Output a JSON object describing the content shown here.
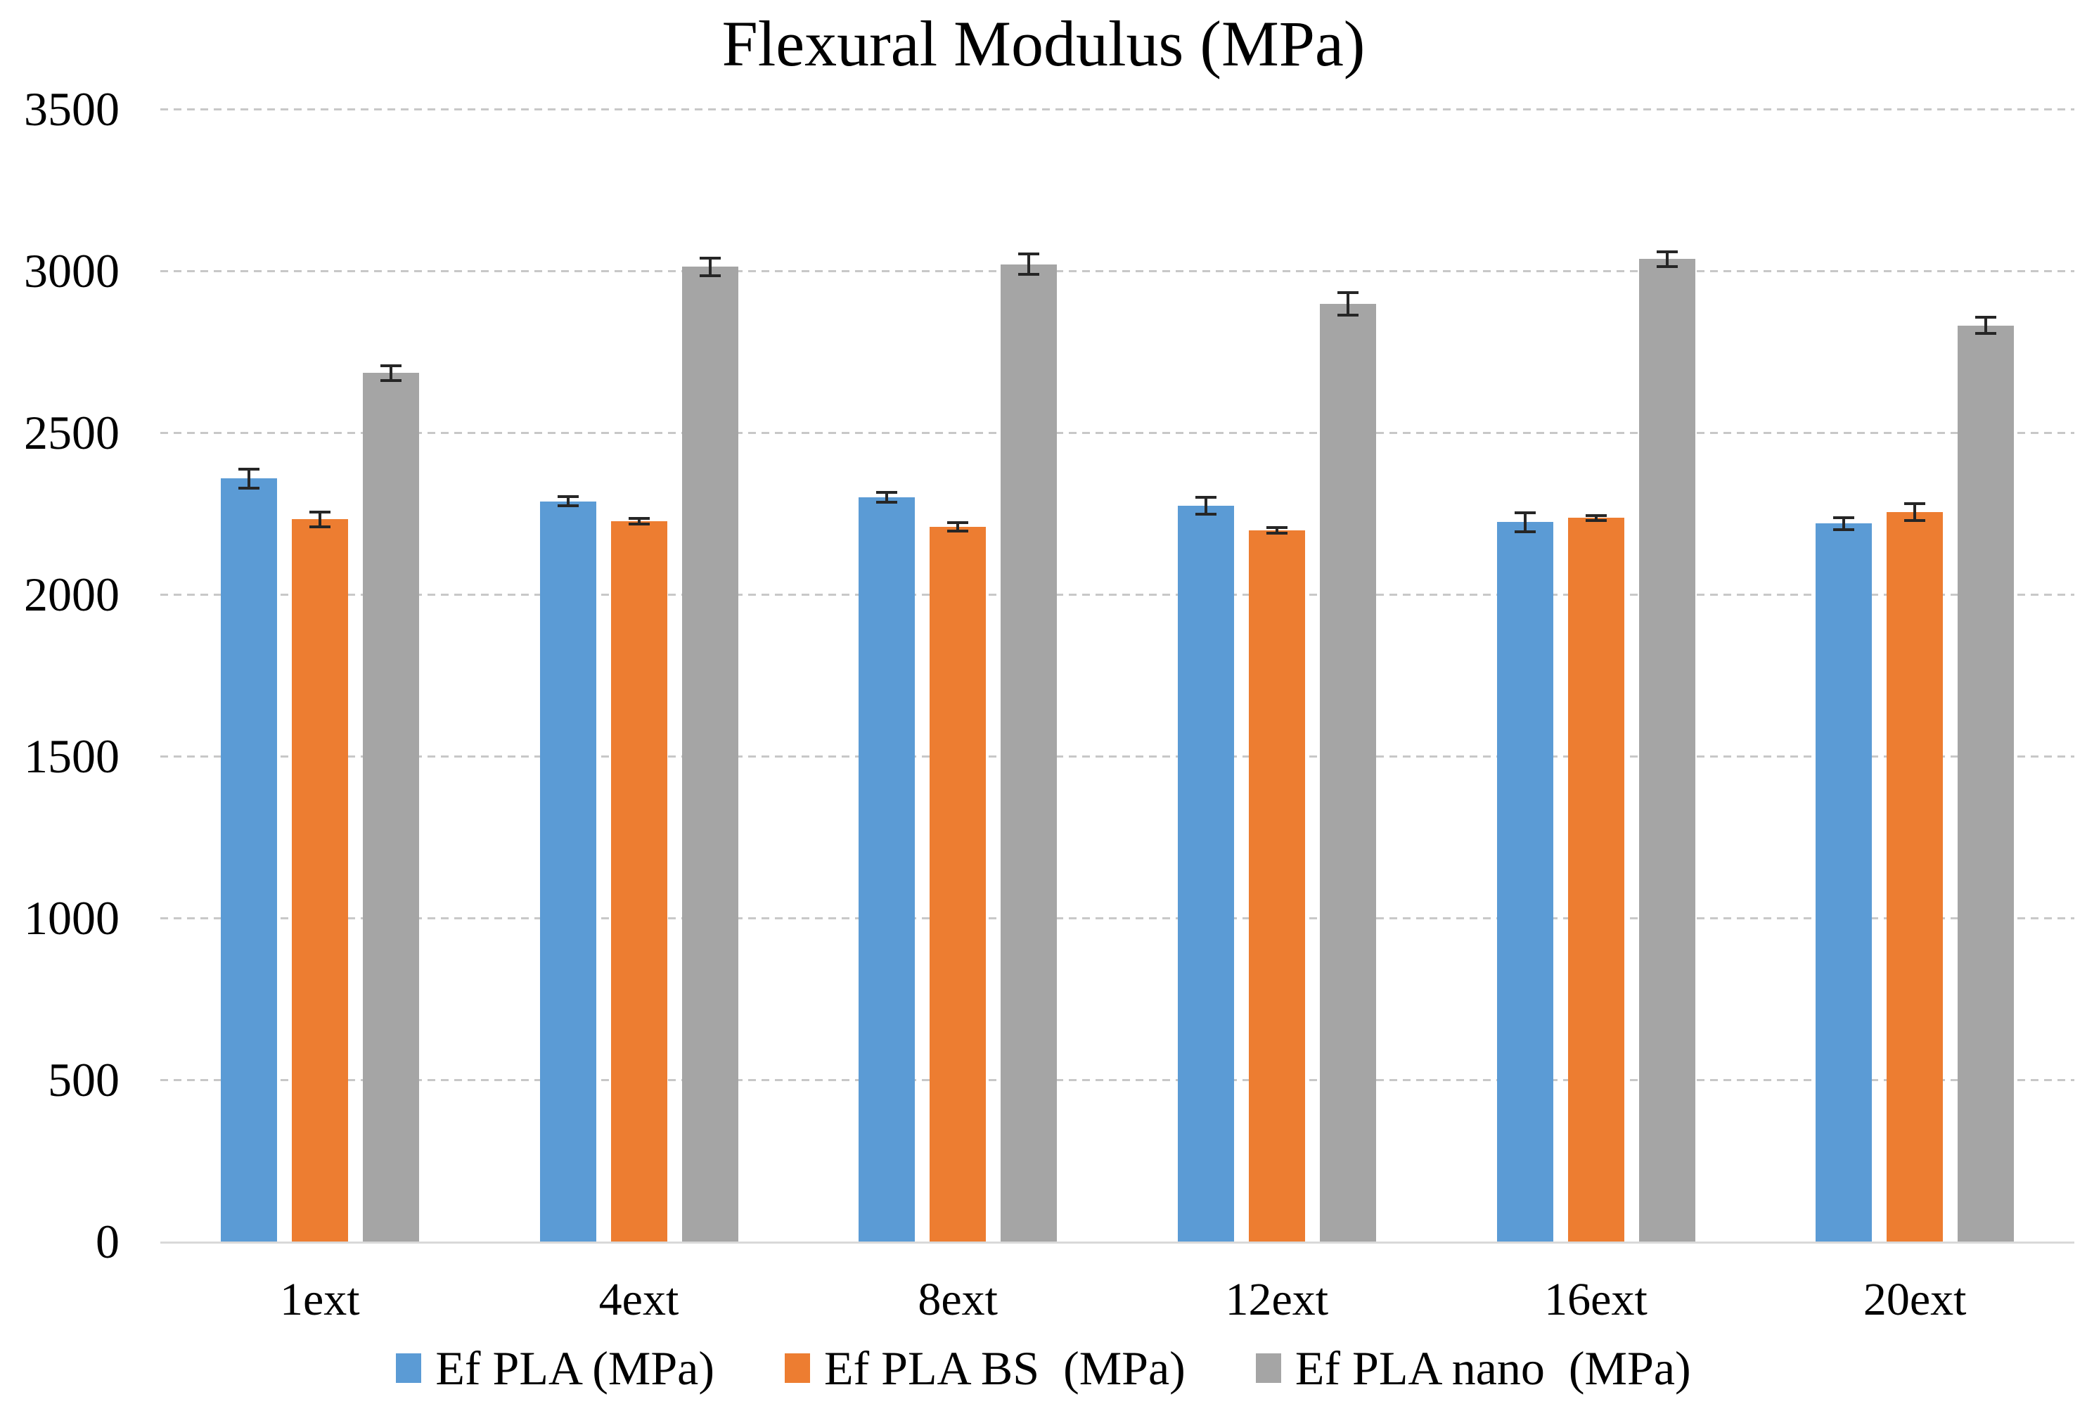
{
  "chart_data": {
    "type": "bar",
    "title": "Flexural Modulus (MPa)",
    "categories": [
      "1ext",
      "4ext",
      "8ext",
      "12ext",
      "16ext",
      "20ext"
    ],
    "series": [
      {
        "name": "Ef PLA (MPa)",
        "color": "#5B9BD5",
        "values": [
          2358,
          2288,
          2300,
          2274,
          2223,
          2219
        ],
        "errors": [
          33,
          19,
          20,
          30,
          33,
          23
        ]
      },
      {
        "name": "Ef PLA BS  (MPa)",
        "color": "#ED7D31",
        "values": [
          2232,
          2226,
          2209,
          2197,
          2236,
          2254
        ],
        "errors": [
          27,
          14,
          18,
          13,
          11,
          31
        ]
      },
      {
        "name": "Ef PLA nano  (MPa)",
        "color": "#A5A5A5",
        "values": [
          2684,
          3012,
          3020,
          2898,
          3036,
          2831
        ],
        "errors": [
          27,
          32,
          36,
          40,
          28,
          29
        ]
      }
    ],
    "xlabel": "",
    "ylabel": "",
    "ylim": [
      0,
      3500
    ],
    "ytick_step": 500,
    "yticks": [
      "3500",
      "3000",
      "2500",
      "2000",
      "1500",
      "1000",
      "500",
      "0"
    ],
    "grid": "horizontal-dashed",
    "gridline_color": "#c8c8c8",
    "axis_line_color": "#d9d9d9",
    "error_bar_color": "#262626",
    "legend_position": "bottom"
  }
}
